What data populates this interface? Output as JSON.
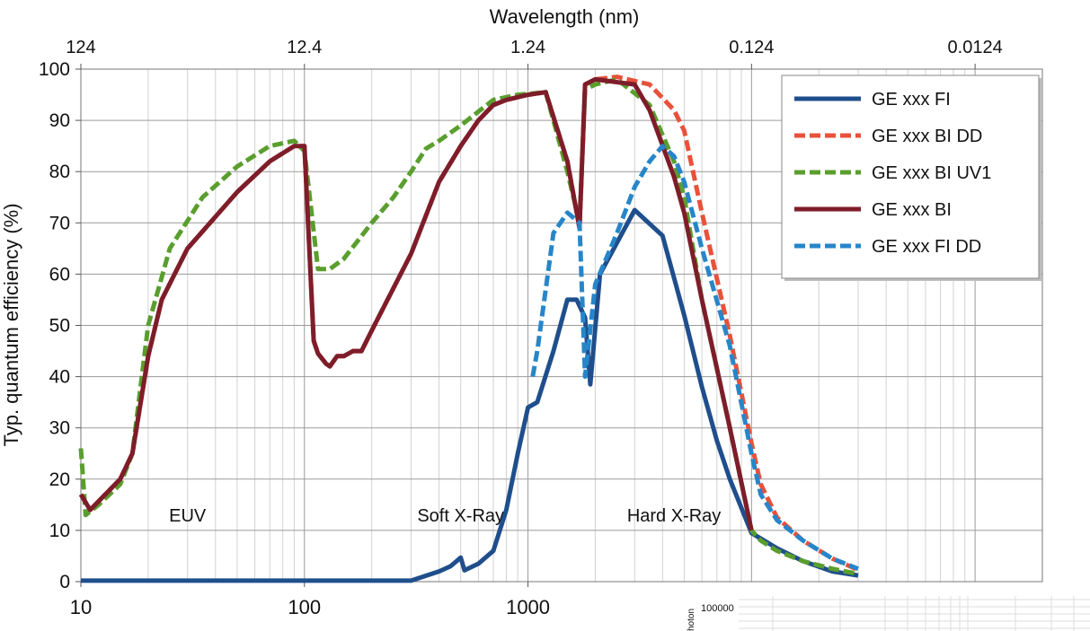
{
  "chart_data": {
    "type": "line",
    "title": "",
    "xlabel": "",
    "ylabel": "Typ. quantum efficiency (%)",
    "x2label": "Wavelength (nm)",
    "xscale": "log",
    "xlim": [
      10,
      200000
    ],
    "ylim": [
      0,
      100
    ],
    "grid": true,
    "legend_position": "top-right",
    "x_ticks": [
      "10",
      "100",
      "1000"
    ],
    "x_ticks_values": [
      10,
      100,
      1000
    ],
    "x2_ticks": [
      "124",
      "12.4",
      "1.24",
      "0.124",
      "0.0124"
    ],
    "x2_ticks_values": [
      10,
      100,
      1000,
      10000,
      100000
    ],
    "y_ticks": [
      "0",
      "10",
      "20",
      "30",
      "40",
      "50",
      "60",
      "70",
      "80",
      "90",
      "100"
    ],
    "region_labels": [
      {
        "text": "EUV",
        "x": 30,
        "y": 13
      },
      {
        "text": "Soft X-Ray",
        "x": 500,
        "y": 13
      },
      {
        "text": "Hard X-Ray",
        "x": 4500,
        "y": 13
      }
    ],
    "corner_fragment": {
      "ylabel": "hoton",
      "tick": "100000"
    },
    "series": [
      {
        "name": "GE xxx FI",
        "color": "#1f4e8c",
        "dash": "solid",
        "x": [
          10,
          20,
          100,
          300,
          400,
          450,
          500,
          520,
          600,
          700,
          800,
          900,
          1000,
          1100,
          1300,
          1500,
          1650,
          1800,
          1900,
          2100,
          3000,
          4000,
          5000,
          6000,
          7000,
          8000,
          10000,
          13000,
          17000,
          23000,
          30000
        ],
        "values": [
          0.2,
          0.2,
          0.2,
          0.2,
          2,
          3,
          4.7,
          2.2,
          3.5,
          6,
          14,
          25,
          34,
          35,
          45,
          55,
          55,
          51.5,
          38.5,
          60,
          72.5,
          67.5,
          52,
          38,
          27.5,
          20,
          9.5,
          6.5,
          4,
          2,
          1.2
        ]
      },
      {
        "name": "GE xxx BI DD",
        "color": "#e8513a",
        "dash": "dash",
        "x": [
          10,
          11,
          15,
          17,
          20,
          23,
          30,
          50,
          70,
          90,
          100,
          110,
          115,
          125,
          130,
          140,
          150,
          165,
          180,
          200,
          300,
          400,
          500,
          600,
          700,
          800,
          1000,
          1200,
          1500,
          1700,
          1800,
          2000,
          2500,
          3500,
          4500,
          5000,
          6000,
          8000,
          10000,
          11000,
          13000,
          17000,
          23000,
          30000
        ],
        "values": [
          17,
          14,
          20,
          25,
          44,
          55,
          65,
          76,
          82,
          85,
          85,
          47,
          44.5,
          42.5,
          42,
          44,
          44,
          45,
          45,
          49,
          64,
          78,
          85,
          90,
          93,
          94,
          95,
          95.5,
          82,
          69,
          97,
          98,
          98.5,
          97,
          92,
          88,
          72,
          48,
          27,
          19,
          12.5,
          8,
          4.5,
          2.3
        ]
      },
      {
        "name": "GE xxx BI UV1",
        "color": "#5a9e2e",
        "dash": "dash",
        "x": [
          10,
          10.5,
          12,
          15,
          17,
          20,
          25,
          35,
          50,
          70,
          90,
          100,
          115,
          130,
          150,
          200,
          250,
          300,
          350,
          400,
          500,
          700,
          900,
          1200,
          1500,
          1700,
          1800,
          2000,
          2500,
          3500,
          4500,
          5000,
          6000,
          8000,
          10000,
          11000,
          13000,
          17000,
          23000,
          30000
        ],
        "values": [
          26,
          13,
          15,
          19,
          25,
          50,
          65,
          75,
          81,
          85,
          86,
          84,
          61,
          61,
          63,
          70,
          75,
          80,
          84.5,
          86,
          89,
          94,
          95,
          95.5,
          80,
          70,
          96,
          97,
          98,
          93,
          82,
          75,
          55,
          30,
          10,
          8,
          6,
          4,
          2.5,
          1.5
        ]
      },
      {
        "name": "GE xxx BI",
        "color": "#7e1d2a",
        "dash": "solid",
        "x": [
          10,
          11,
          15,
          17,
          20,
          23,
          30,
          50,
          70,
          90,
          100,
          110,
          115,
          125,
          130,
          140,
          150,
          165,
          180,
          200,
          300,
          400,
          500,
          600,
          700,
          800,
          1000,
          1200,
          1500,
          1700,
          1800,
          2000,
          3000,
          3500,
          4500,
          5000,
          6000,
          8000,
          10000
        ],
        "values": [
          17,
          14,
          20,
          25,
          44,
          55,
          65,
          76,
          82,
          85,
          85,
          47,
          44.5,
          42.5,
          42,
          44,
          44,
          45,
          45,
          49,
          64,
          78,
          85,
          90,
          93,
          94,
          95,
          95.5,
          82,
          69,
          97,
          98,
          97,
          92,
          79,
          72,
          55,
          30,
          10
        ]
      },
      {
        "name": "GE xxx FI DD",
        "color": "#2786c9",
        "dash": "dash",
        "x": [
          1050,
          1100,
          1200,
          1300,
          1500,
          1700,
          1800,
          2000,
          2500,
          3000,
          3500,
          4000,
          4500,
          5000,
          6000,
          8000,
          10000,
          11000,
          13000,
          17000,
          23000,
          30000
        ],
        "values": [
          40,
          45,
          57,
          68,
          72,
          70,
          40,
          58,
          68,
          77,
          82,
          85,
          83,
          78,
          65,
          46,
          25,
          17,
          12,
          8,
          4.5,
          2.5
        ]
      }
    ]
  }
}
